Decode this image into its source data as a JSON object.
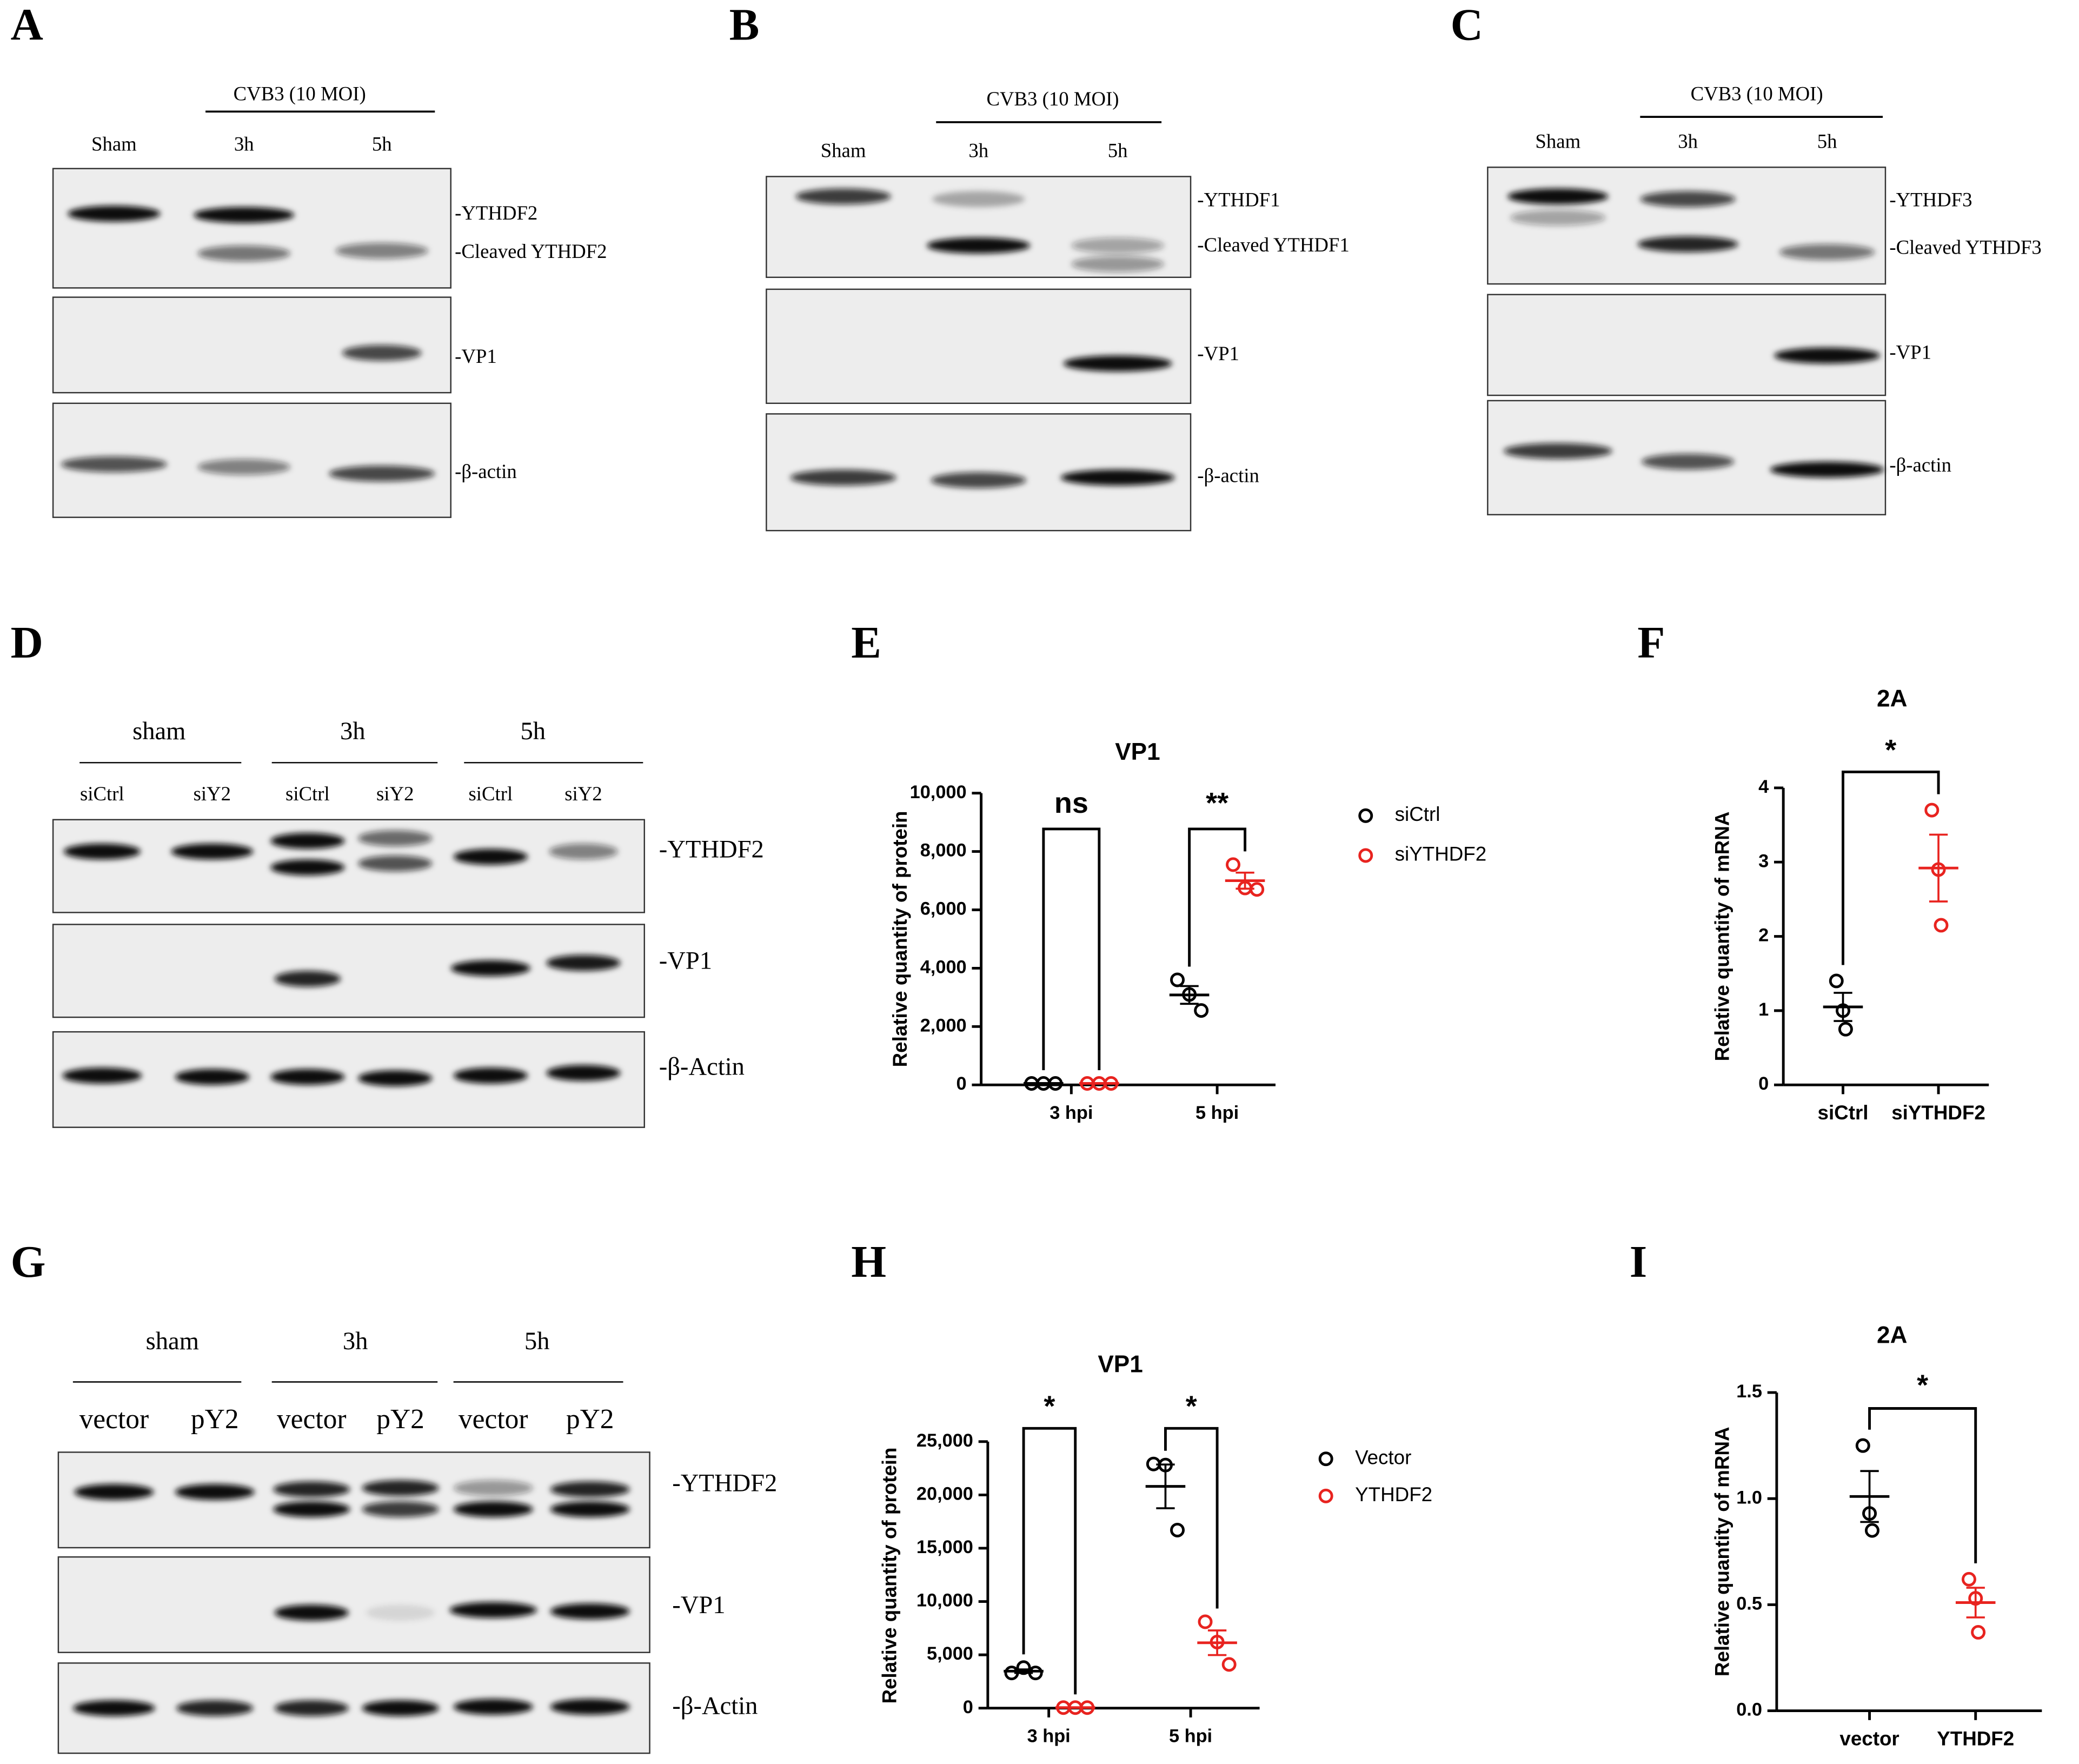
{
  "blots": [
    {
      "panel": "A",
      "treatment": "CVB3 (10 MOI)",
      "lanes": [
        "Sham",
        "3h",
        "5h"
      ],
      "bands": [
        "-YTHDF2",
        "-Cleaved YTHDF2",
        "-VP1",
        "-β-actin"
      ]
    },
    {
      "panel": "B",
      "treatment": "CVB3 (10 MOI)",
      "lanes": [
        "Sham",
        "3h",
        "5h"
      ],
      "bands": [
        "-YTHDF1",
        "-Cleaved YTHDF1",
        "-VP1",
        "-β-actin"
      ]
    },
    {
      "panel": "C",
      "treatment": "CVB3 (10 MOI)",
      "lanes": [
        "Sham",
        "3h",
        "5h"
      ],
      "bands": [
        "-YTHDF3",
        "-Cleaved YTHDF3",
        "-VP1",
        "-β-actin"
      ]
    },
    {
      "panel": "D",
      "groups": [
        "sham",
        "3h",
        "5h"
      ],
      "lanes": [
        "siCtrl",
        "siY2",
        "siCtrl",
        "siY2",
        "siCtrl",
        "siY2"
      ],
      "bands": [
        "-YTHDF2",
        "-VP1",
        "-β-Actin"
      ]
    },
    {
      "panel": "G",
      "groups": [
        "sham",
        "3h",
        "5h"
      ],
      "lanes": [
        "vector",
        "pY2",
        "vector",
        "pY2",
        "vector",
        "pY2"
      ],
      "bands": [
        "-YTHDF2",
        "-VP1",
        "-β-Actin"
      ]
    }
  ],
  "chart_data": [
    {
      "type": "scatter",
      "panel": "E",
      "title": "VP1",
      "y_label": "Relative quantity of protein",
      "categories": [
        "3 hpi",
        "5 hpi"
      ],
      "ylim": [
        0,
        10000
      ],
      "yticks": [
        0,
        {
          "value": 2000,
          "label": "2,000"
        },
        {
          "value": 4000,
          "label": "4,000"
        },
        {
          "value": 6000,
          "label": "6,000"
        },
        {
          "value": 8000,
          "label": "8,000"
        },
        {
          "value": 10000,
          "label": "10,000"
        }
      ],
      "series": [
        {
          "name": "siCtrl",
          "color": "#000000",
          "points": [
            [
              50,
              50,
              50
            ],
            [
              3600,
              3100,
              2550
            ]
          ],
          "mean": [
            50,
            3083
          ],
          "sem": [
            0,
            304
          ]
        },
        {
          "name": "siYTHDF2",
          "color": "#e8231f",
          "points": [
            [
              50,
              50,
              50
            ],
            [
              7550,
              6750,
              6700
            ]
          ],
          "mean": [
            50,
            7000
          ],
          "sem": [
            0,
            275
          ]
        }
      ],
      "annotations": [
        "ns",
        "**"
      ]
    },
    {
      "type": "dot",
      "panel": "F",
      "title": "2A",
      "y_label": "Relative quantity of mRNA",
      "ylim": [
        0,
        4
      ],
      "yticks": [
        0,
        1,
        2,
        3,
        4
      ],
      "groups": [
        {
          "category": "siCtrl",
          "color": "#000000",
          "points": [
            1.4,
            1.0,
            0.75
          ],
          "mean": 1.05,
          "sem": 0.19
        },
        {
          "category": "siYTHDF2",
          "color": "#e8231f",
          "points": [
            3.7,
            2.9,
            2.15
          ],
          "mean": 2.92,
          "sem": 0.45
        }
      ],
      "annotations": [
        "*"
      ]
    },
    {
      "type": "scatter",
      "panel": "H",
      "title": "VP1",
      "y_label": "Relative quantity of protein",
      "categories": [
        "3 hpi",
        "5 hpi"
      ],
      "ylim": [
        0,
        25000
      ],
      "yticks": [
        0,
        {
          "value": 5000,
          "label": "5,000"
        },
        {
          "value": 10000,
          "label": "10,000"
        },
        {
          "value": 15000,
          "label": "15,000"
        },
        {
          "value": 20000,
          "label": "20,000"
        },
        {
          "value": 25000,
          "label": "25,000"
        }
      ],
      "series": [
        {
          "name": "Vector",
          "color": "#000000",
          "points": [
            [
              3300,
              3800,
              3300
            ],
            [
              22900,
              22800,
              16700
            ]
          ],
          "mean": [
            3467,
            20800
          ],
          "sem": [
            167,
            2050
          ]
        },
        {
          "name": "YTHDF2",
          "color": "#e8231f",
          "points": [
            [
              50,
              50,
              50
            ],
            [
              8100,
              6200,
              4100
            ]
          ],
          "mean": [
            50,
            6133
          ],
          "sem": [
            0,
            1155
          ]
        }
      ],
      "annotations": [
        "*",
        "*"
      ]
    },
    {
      "type": "dot",
      "panel": "I",
      "title": "2A",
      "y_label": "Relative quantity of mRNA",
      "ylim": [
        0,
        1.5
      ],
      "yticks": [
        {
          "value": 0,
          "label": "0.0"
        },
        0.5,
        {
          "value": 1,
          "label": "1.0"
        },
        1.5
      ],
      "groups": [
        {
          "category": "vector",
          "color": "#000000",
          "points": [
            1.25,
            0.93,
            0.85
          ],
          "mean": 1.01,
          "sem": 0.12
        },
        {
          "category": "YTHDF2",
          "color": "#e8231f",
          "points": [
            0.62,
            0.53,
            0.37
          ],
          "mean": 0.51,
          "sem": 0.07
        }
      ],
      "annotations": [
        "*"
      ]
    }
  ]
}
